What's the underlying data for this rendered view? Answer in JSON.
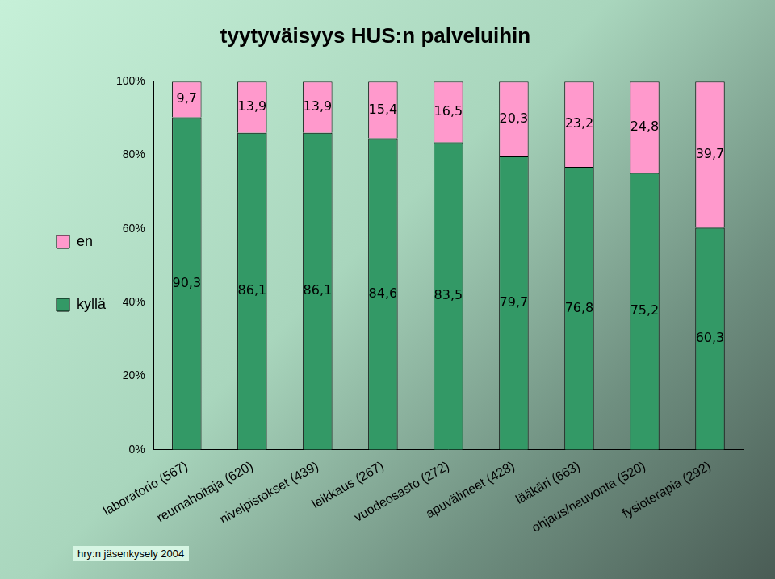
{
  "chart_data": {
    "type": "bar",
    "title": "tyytyväisyys HUS:n palveluihin",
    "categories": [
      "laboratorio (567)",
      "reumahoitaja (620)",
      "nivelpistokset (439)",
      "leikkaus (267)",
      "vuodeosasto (272)",
      "apuvälineet (428)",
      "lääkäri (663)",
      "ohjaus/neuvonta (520)",
      "fysioterapia (292)"
    ],
    "series": [
      {
        "name": "kyllä",
        "color": "#339966",
        "values": [
          90.3,
          86.1,
          86.1,
          84.6,
          83.5,
          79.7,
          76.8,
          75.2,
          60.3
        ],
        "value_labels": [
          "90,3",
          "86,1",
          "86,1",
          "84,6",
          "83,5",
          "79,7",
          "76,8",
          "75,2",
          "60,3"
        ]
      },
      {
        "name": "en",
        "color": "#ff99cc",
        "values": [
          9.7,
          13.9,
          13.9,
          15.4,
          16.5,
          20.3,
          23.2,
          24.8,
          39.7
        ],
        "value_labels": [
          "9,7",
          "13,9",
          "13,9",
          "15,4",
          "16,5",
          "20,3",
          "23,2",
          "24,8",
          "39,7"
        ]
      }
    ],
    "ylim": [
      0,
      100
    ],
    "yticks": [
      {
        "value": 0,
        "label": "0%"
      },
      {
        "value": 20,
        "label": "20%"
      },
      {
        "value": 40,
        "label": "40%"
      },
      {
        "value": 60,
        "label": "60%"
      },
      {
        "value": 80,
        "label": "80%"
      },
      {
        "value": 100,
        "label": "100%"
      }
    ],
    "stacked": true,
    "grid": false,
    "legend": "left",
    "data_labels": true,
    "annotations": [
      "hry:n jäsenkysely 2004"
    ]
  }
}
